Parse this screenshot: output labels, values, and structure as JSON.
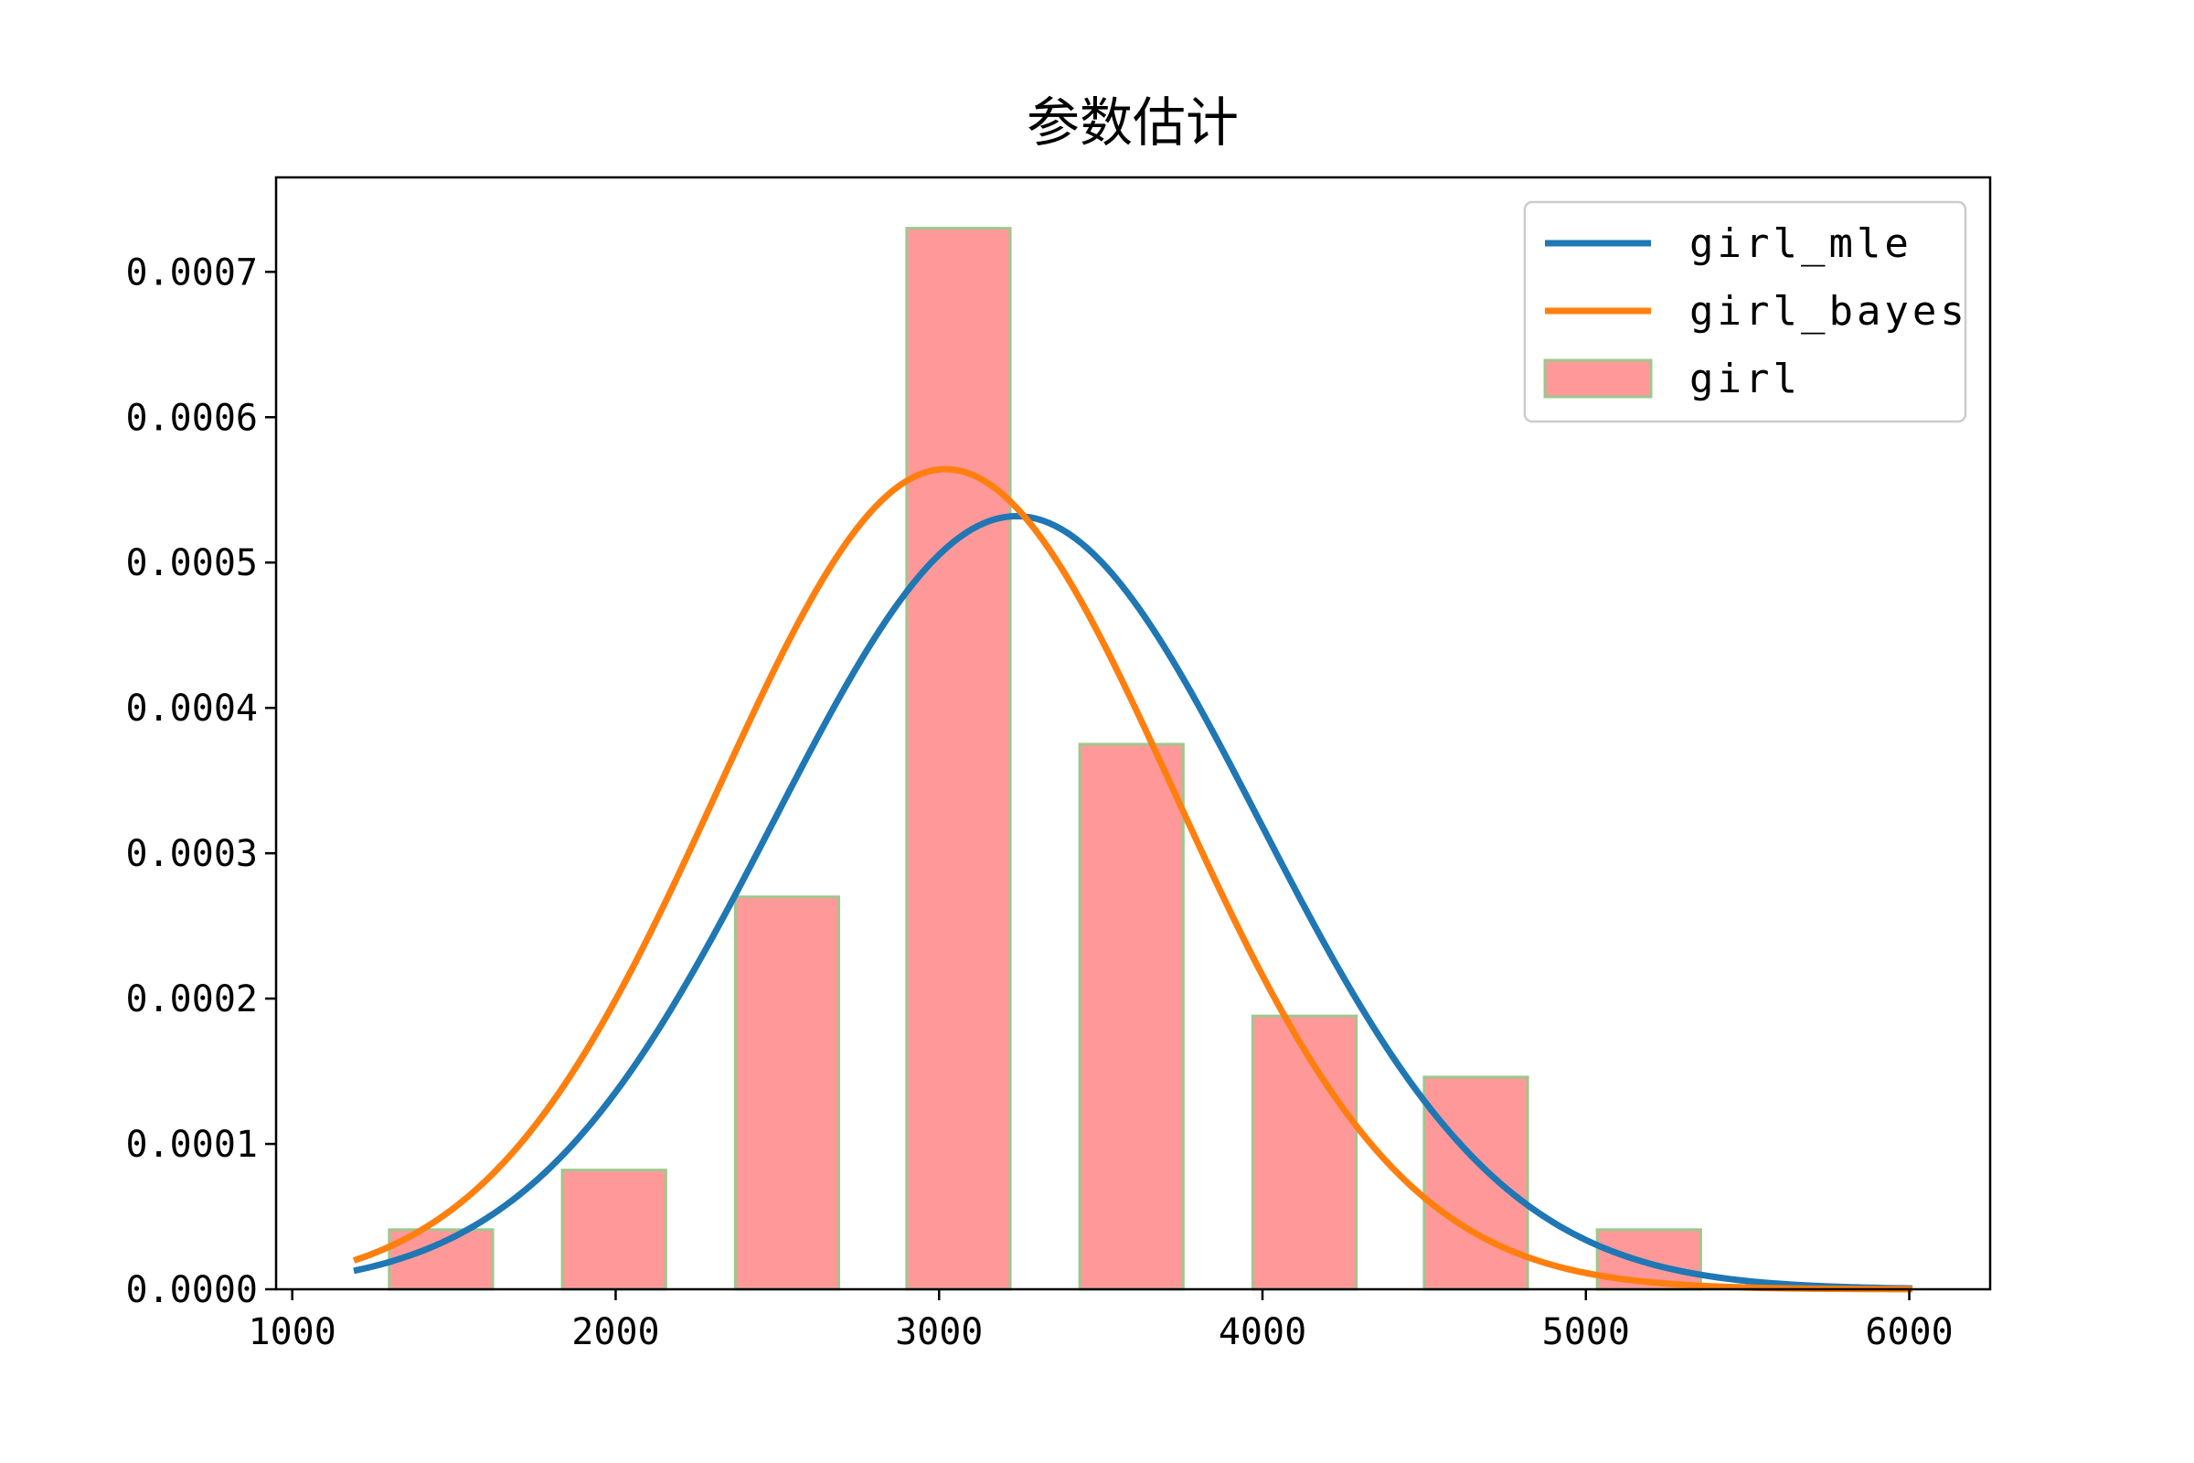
{
  "chart_data": {
    "type": "bar",
    "title": "参数估计",
    "xlabel": "",
    "ylabel": "",
    "xlim": [
      950,
      6250
    ],
    "ylim": [
      0,
      0.000765
    ],
    "x_ticks": [
      1000,
      2000,
      3000,
      4000,
      5000,
      6000
    ],
    "y_ticks": [
      0.0,
      0.0001,
      0.0002,
      0.0003,
      0.0004,
      0.0005,
      0.0006,
      0.0007
    ],
    "y_tick_labels": [
      "0.0000",
      "0.0001",
      "0.0002",
      "0.0003",
      "0.0004",
      "0.0005",
      "0.0006",
      "0.0007"
    ],
    "grid": false,
    "legend_position": "top-right",
    "histogram": {
      "name": "girl",
      "color": "#ff9999",
      "edge_color": "#9dc88d",
      "bins": [
        {
          "x0": 1300,
          "x1": 1620,
          "value": 4.1e-05
        },
        {
          "x0": 1835,
          "x1": 2155,
          "value": 8.2e-05
        },
        {
          "x0": 2370,
          "x1": 2690,
          "value": 0.00027
        },
        {
          "x0": 2900,
          "x1": 3220,
          "value": 0.00073
        },
        {
          "x0": 3435,
          "x1": 3755,
          "value": 0.000375
        },
        {
          "x0": 3970,
          "x1": 4290,
          "value": 0.000188
        },
        {
          "x0": 4500,
          "x1": 4820,
          "value": 0.000146
        },
        {
          "x0": 5035,
          "x1": 5355,
          "value": 4.1e-05
        }
      ]
    },
    "series": [
      {
        "name": "girl_mle",
        "type": "line",
        "color": "#1f77b4",
        "distribution": "normal",
        "mean": 3240,
        "std": 750,
        "x_range": [
          1200,
          6000
        ]
      },
      {
        "name": "girl_bayes",
        "type": "line",
        "color": "#ff7f0e",
        "distribution": "normal",
        "mean": 3020,
        "std": 707,
        "x_range": [
          1200,
          6000
        ]
      }
    ]
  }
}
